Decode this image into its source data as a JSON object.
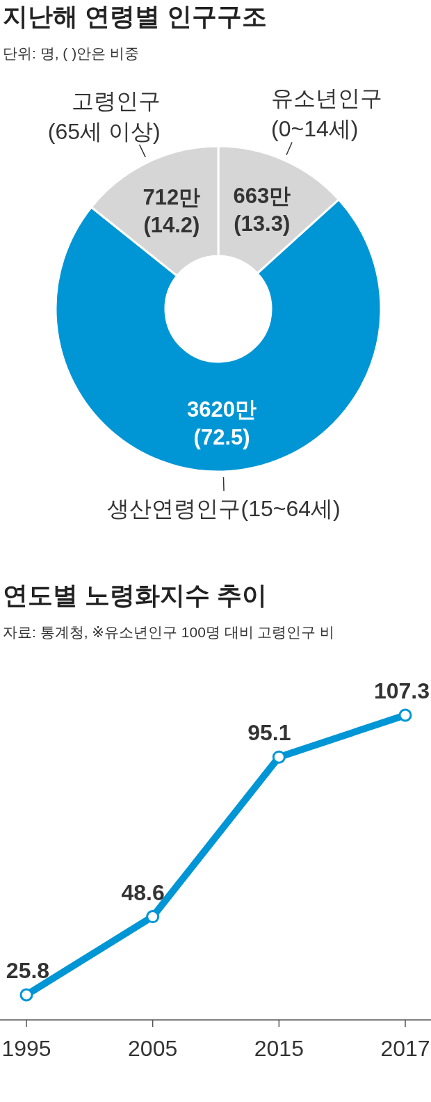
{
  "chart_data": [
    {
      "type": "donut",
      "title": "지난해 연령별 인구구조",
      "subtitle": "단위: 명, ( )안은 비중",
      "categories": [
        "유소년인구\n(0~14세)",
        "생산연령인구(15~64세)",
        "고령인구\n(65세 이상)"
      ],
      "values": [
        663,
        3620,
        712
      ],
      "colors": [
        "#d6d6d6",
        "#0096d6",
        "#d6d6d6"
      ],
      "value_labels": [
        "663만\n(13.3)",
        "3620만\n(72.5)",
        "712만\n(14.2)"
      ]
    },
    {
      "type": "line",
      "title": "연도별 노령화지수 추이",
      "subtitle": "자료: 통계청, ※유소년인구 100명 대비 고령인구 비",
      "categories": [
        "1995",
        null,
        "2005",
        null,
        "2015",
        null,
        "2017"
      ],
      "series": [
        {
          "color": "#0096d6",
          "values": [
            25.8,
            null,
            48.6,
            null,
            95.1,
            null,
            107.3
          ]
        }
      ],
      "data_labels": true,
      "marker": "circle"
    }
  ]
}
